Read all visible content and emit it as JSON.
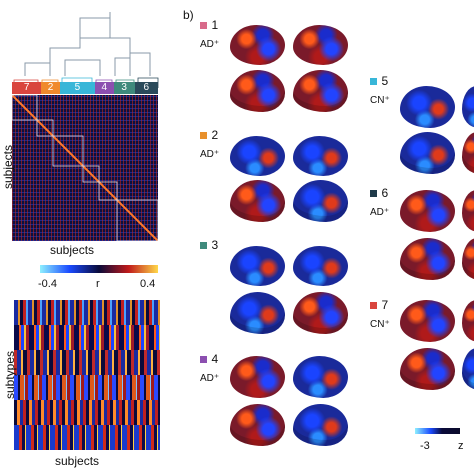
{
  "panel_a": {
    "clusters": [
      "7",
      "2",
      "5",
      "4",
      "3",
      "6"
    ],
    "cluster_colors": [
      "#d9453e",
      "#f08a2c",
      "#38b6d8",
      "#8c4fb0",
      "#3f8a7c",
      "#2a4a5a"
    ],
    "matrix_ylabel": "subjects",
    "matrix_xlabel": "subjects",
    "colorbar": {
      "min": "-0.4",
      "mid": "r",
      "max": "0.4"
    },
    "subtypes_ylabel": "subtypes",
    "subtypes_xlabel": "subjects"
  },
  "panel_b": {
    "label": "b)",
    "subtypes": [
      {
        "num": "1",
        "tag": "AD⁺",
        "color": "#d86a8a"
      },
      {
        "num": "2",
        "tag": "AD⁺",
        "color": "#e8902c"
      },
      {
        "num": "3",
        "tag": "",
        "color": "#3f8a7c"
      },
      {
        "num": "4",
        "tag": "AD⁺",
        "color": "#8c4fb0"
      },
      {
        "num": "5",
        "tag": "CN⁺",
        "color": "#38b6d8"
      },
      {
        "num": "6",
        "tag": "AD⁺",
        "color": "#1f3a4a"
      },
      {
        "num": "7",
        "tag": "CN⁺",
        "color": "#d9453e"
      }
    ],
    "colorbar": {
      "min": "-3",
      "unit": "z"
    }
  }
}
